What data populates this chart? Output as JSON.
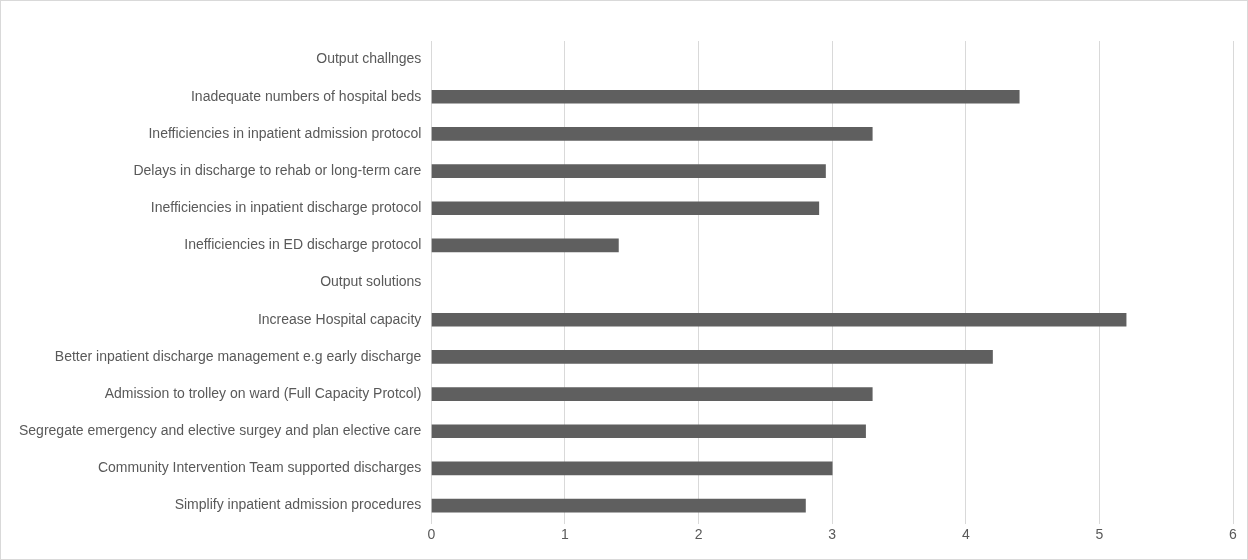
{
  "chart_data": {
    "type": "bar",
    "orientation": "horizontal",
    "categories": [
      "Output challnges",
      "Inadequate numbers of hospital beds",
      "Inefficiencies in inpatient admission protocol",
      "Delays in discharge to rehab or long-term care",
      "Inefficiencies in inpatient discharge protocol",
      "Inefficiencies in ED discharge protocol",
      "Output solutions",
      "Increase Hospital capacity",
      "Better inpatient discharge management e.g early discharge",
      "Admission to trolley on ward (Full Capacity Protcol)",
      "Segregate emergency and elective surgey and plan elective care",
      "Community Intervention Team supported discharges",
      "Simplify inpatient admission procedures"
    ],
    "values": [
      null,
      4.4,
      3.3,
      2.95,
      2.9,
      1.4,
      null,
      5.2,
      4.2,
      3.3,
      3.25,
      3.0,
      2.8
    ],
    "color": "#5f5f5f",
    "xlim": [
      0,
      6
    ],
    "xticks": [
      0,
      1,
      2,
      3,
      4,
      5,
      6
    ],
    "grid": "x",
    "legend": false
  }
}
